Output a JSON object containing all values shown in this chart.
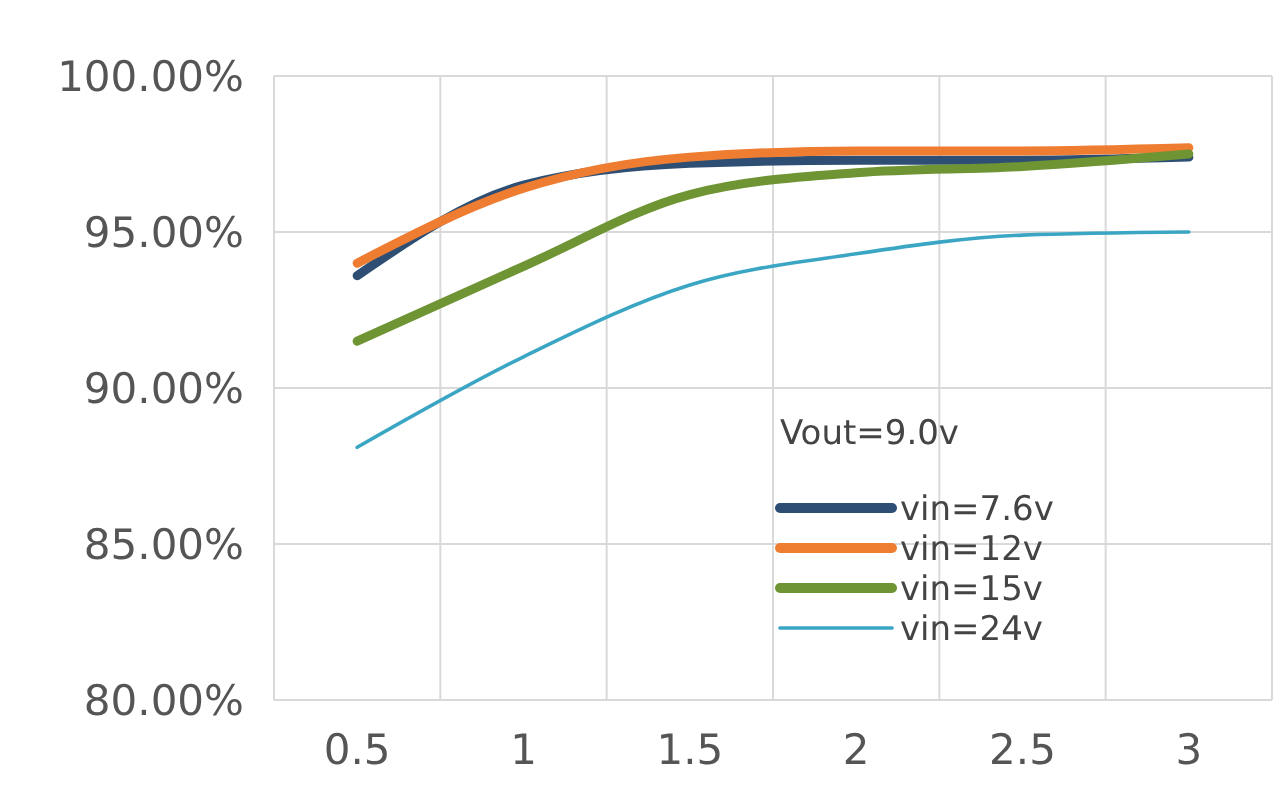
{
  "chart_data": {
    "type": "line",
    "categories": [
      "0.5",
      "1",
      "1.5",
      "2",
      "2.5",
      "3"
    ],
    "series": [
      {
        "name": "vin=7.6v",
        "color": "#2e4f73",
        "values": [
          93.6,
          96.5,
          97.2,
          97.3,
          97.3,
          97.4
        ]
      },
      {
        "name": "vin=12v",
        "color": "#ee7d31",
        "values": [
          94.0,
          96.4,
          97.4,
          97.6,
          97.6,
          97.7
        ]
      },
      {
        "name": "vin=15v",
        "color": "#6e9434",
        "values": [
          91.5,
          93.9,
          96.2,
          96.9,
          97.1,
          97.5
        ]
      },
      {
        "name": "vin=24v",
        "color": "#3ba6c4",
        "values": [
          88.1,
          91.0,
          93.3,
          94.3,
          94.9,
          95.0
        ]
      }
    ],
    "ylim": [
      80,
      100
    ],
    "yticks": [
      {
        "value": 80,
        "label": "80.00%"
      },
      {
        "value": 85,
        "label": "85.00%"
      },
      {
        "value": 90,
        "label": "90.00%"
      },
      {
        "value": 95,
        "label": "95.00%"
      },
      {
        "value": 100,
        "label": "100.00%"
      }
    ],
    "grid": true,
    "legend": "bottom right",
    "legend_title": "Vout=9.0v",
    "marker": "none",
    "line_style": "solid"
  }
}
